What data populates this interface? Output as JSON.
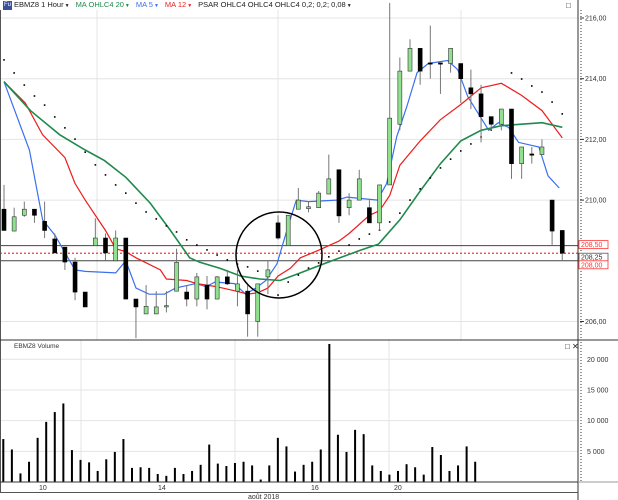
{
  "header": {
    "symbol": "EBMZ8 1 Hour",
    "ma20": "MA OHLC4 20",
    "ma5": "MA 5",
    "ma12": "MA 12",
    "psar": "PSAR OHLC4 OHLC4 OHLC4 0,2; 0,2; 0,08",
    "logo": "Fu"
  },
  "volume_panel": {
    "title": "EBMZ8 Volume"
  },
  "colors": {
    "ma5": "#3a6ff0",
    "ma12": "#ee1c1c",
    "ma20": "#1f8a4c",
    "up": "#90e090",
    "down": "#000000",
    "level": "#ff3333"
  },
  "chart_data": [
    {
      "type": "candlestick",
      "title": "EBMZ8 1 Hour",
      "y_ticks": [
        "216,00",
        "214,00",
        "212,00",
        "210,00",
        "206,00"
      ],
      "y_tick_values": [
        216,
        214,
        212,
        210,
        206
      ],
      "ylim": [
        205.4,
        216.6
      ],
      "price_levels": [
        {
          "label": "208,50",
          "value": 208.5,
          "style": "solid"
        },
        {
          "label": "208,25",
          "value": 208.25,
          "style": "dotted"
        },
        {
          "label": "208,00",
          "value": 208.0,
          "style": "solid"
        }
      ],
      "annotation": "circle around crossover",
      "annotation_center": [
        27,
        208.1
      ],
      "ohlc": [
        [
          209.7,
          210.5,
          209.0,
          209.0
        ],
        [
          208.98,
          209.75,
          208.98,
          209.45
        ],
        [
          209.5,
          209.95,
          209.45,
          209.7
        ],
        [
          209.7,
          209.7,
          209.25,
          209.5
        ],
        [
          209.3,
          209.95,
          208.75,
          209.0
        ],
        [
          208.72,
          208.9,
          208.26,
          208.26
        ],
        [
          208.45,
          208.45,
          207.7,
          207.96
        ],
        [
          207.96,
          208.1,
          206.7,
          206.97
        ],
        [
          206.97,
          206.97,
          206.48,
          206.48
        ],
        [
          208.5,
          209.4,
          208.5,
          208.75
        ],
        [
          208.75,
          208.9,
          208.0,
          208.26
        ],
        [
          208.0,
          209.0,
          208.0,
          208.75
        ],
        [
          208.75,
          208.75,
          206.74,
          206.74
        ],
        [
          206.74,
          206.74,
          205.45,
          206.48
        ],
        [
          206.25,
          207.2,
          206.25,
          206.5
        ],
        [
          206.25,
          207.0,
          206.25,
          206.48
        ],
        [
          206.48,
          207.0,
          206.3,
          206.52
        ],
        [
          207.0,
          208.4,
          207.0,
          207.95
        ],
        [
          206.97,
          207.2,
          206.5,
          206.74
        ],
        [
          206.74,
          207.6,
          206.5,
          207.47
        ],
        [
          207.2,
          207.5,
          206.4,
          206.74
        ],
        [
          206.74,
          207.5,
          206.74,
          207.47
        ],
        [
          207.47,
          207.7,
          207.2,
          207.24
        ],
        [
          207.0,
          207.7,
          206.5,
          207.24
        ],
        [
          207.0,
          207.2,
          205.5,
          206.25
        ],
        [
          206.0,
          207.24,
          205.5,
          207.24
        ],
        [
          207.47,
          208.0,
          206.9,
          207.7
        ],
        [
          209.25,
          209.5,
          208.7,
          208.75
        ],
        [
          208.5,
          209.5,
          208.5,
          209.5
        ],
        [
          209.7,
          210.4,
          209.7,
          210.0
        ],
        [
          209.72,
          209.95,
          209.6,
          209.78
        ],
        [
          209.75,
          210.3,
          209.75,
          210.23
        ],
        [
          210.2,
          211.5,
          210.2,
          210.7
        ],
        [
          211.0,
          211.0,
          209.25,
          209.48
        ],
        [
          209.75,
          210.23,
          209.5,
          210.0
        ],
        [
          210.0,
          211.0,
          210.0,
          210.7
        ],
        [
          209.75,
          210.0,
          209.25,
          209.25
        ],
        [
          209.25,
          210.5,
          209.0,
          210.5
        ],
        [
          210.5,
          216.5,
          210.5,
          212.7
        ],
        [
          212.5,
          214.7,
          212.3,
          214.25
        ],
        [
          214.25,
          215.3,
          214.25,
          215.0
        ],
        [
          215.0,
          215.0,
          213.8,
          214.25
        ],
        [
          214.52,
          215.75,
          214.0,
          214.48
        ],
        [
          214.52,
          214.5,
          213.5,
          214.48
        ],
        [
          214.5,
          215.0,
          214.2,
          215.0
        ],
        [
          214.5,
          214.5,
          213.2,
          214.0
        ],
        [
          213.7,
          214.3,
          213.0,
          213.5
        ],
        [
          213.5,
          213.8,
          211.9,
          212.75
        ],
        [
          212.75,
          212.75,
          212.3,
          212.5
        ],
        [
          212.5,
          213.0,
          212.3,
          213.0
        ],
        [
          213.0,
          213.0,
          210.7,
          211.2
        ],
        [
          211.2,
          211.75,
          210.7,
          211.75
        ],
        [
          211.52,
          211.75,
          211.2,
          211.48
        ],
        [
          211.5,
          212.0,
          211.5,
          211.75
        ],
        [
          210.0,
          210.0,
          208.5,
          208.98
        ],
        [
          209.0,
          209.0,
          208.0,
          208.25
        ]
      ],
      "series": [
        {
          "name": "MA 5",
          "points": [
            [
              0,
              213.9
            ],
            [
              2.5,
              211.65
            ],
            [
              3.8,
              209.35
            ],
            [
              5,
              208.85
            ],
            [
              7,
              207.7
            ],
            [
              8,
              207.65
            ],
            [
              11,
              207.6
            ],
            [
              12,
              208.0
            ],
            [
              13,
              207.1
            ],
            [
              14.3,
              206.9
            ],
            [
              15.8,
              206.9
            ],
            [
              16.9,
              207.1
            ],
            [
              18.9,
              207.25
            ],
            [
              19.9,
              207.15
            ],
            [
              20.8,
              207.3
            ],
            [
              22.7,
              207.25
            ],
            [
              23.8,
              206.9
            ],
            [
              24.8,
              207.1
            ],
            [
              25.8,
              207.35
            ],
            [
              26.9,
              207.9
            ],
            [
              28,
              209.15
            ],
            [
              28.8,
              210.0
            ],
            [
              30,
              209.95
            ],
            [
              32.8,
              210.0
            ],
            [
              33.8,
              210.1
            ],
            [
              36.8,
              210.0
            ],
            [
              37.7,
              210.55
            ],
            [
              38.7,
              212.1
            ],
            [
              39.7,
              213.1
            ],
            [
              40.7,
              214.2
            ],
            [
              41.8,
              214.5
            ],
            [
              43.7,
              214.6
            ],
            [
              44.7,
              214.3
            ],
            [
              45.7,
              213.4
            ],
            [
              47.75,
              212.3
            ],
            [
              48.7,
              212.55
            ],
            [
              49.7,
              212.4
            ],
            [
              50.7,
              211.9
            ],
            [
              52.7,
              211.75
            ],
            [
              53.6,
              210.8
            ],
            [
              54.7,
              210.4
            ]
          ]
        },
        {
          "name": "MA 12",
          "points": [
            [
              0,
              213.9
            ],
            [
              2.1,
              213.2
            ],
            [
              3.8,
              212.15
            ],
            [
              6,
              211.4
            ],
            [
              7,
              210.55
            ],
            [
              8,
              210.0
            ],
            [
              10,
              209.0
            ],
            [
              11,
              208.4
            ],
            [
              12,
              208.3
            ],
            [
              13,
              208.1
            ],
            [
              15.4,
              207.7
            ],
            [
              16,
              207.4
            ],
            [
              18,
              207.35
            ],
            [
              19,
              207.25
            ],
            [
              20.9,
              207.15
            ],
            [
              22.9,
              207.0
            ],
            [
              24,
              206.9
            ],
            [
              25,
              206.95
            ],
            [
              26,
              207.1
            ],
            [
              27,
              207.5
            ],
            [
              28.2,
              207.75
            ],
            [
              29.2,
              208.1
            ],
            [
              31,
              208.35
            ],
            [
              33,
              208.65
            ],
            [
              34,
              208.9
            ],
            [
              36,
              209.5
            ],
            [
              37,
              209.65
            ],
            [
              38,
              210.15
            ],
            [
              39,
              211.15
            ],
            [
              41,
              211.95
            ],
            [
              43,
              212.65
            ],
            [
              45,
              213.15
            ],
            [
              47,
              213.7
            ],
            [
              49,
              213.85
            ],
            [
              51,
              213.45
            ],
            [
              53,
              212.95
            ],
            [
              55,
              212.05
            ]
          ]
        },
        {
          "name": "MA OHLC4 20",
          "points": [
            [
              0,
              213.9
            ],
            [
              2.6,
              212.95
            ],
            [
              5.5,
              212.15
            ],
            [
              8,
              211.65
            ],
            [
              9.9,
              211.3
            ],
            [
              12,
              210.75
            ],
            [
              14.4,
              209.9
            ],
            [
              16.4,
              209.0
            ],
            [
              18.3,
              208.1
            ],
            [
              19.3,
              207.95
            ],
            [
              21.3,
              207.75
            ],
            [
              23.3,
              207.5
            ],
            [
              25.2,
              207.4
            ],
            [
              27.2,
              207.35
            ],
            [
              29.2,
              207.6
            ],
            [
              31.1,
              207.85
            ],
            [
              33.1,
              208.1
            ],
            [
              35.1,
              208.35
            ],
            [
              36.9,
              208.55
            ],
            [
              39,
              209.35
            ],
            [
              41,
              210.3
            ],
            [
              43,
              211.2
            ],
            [
              45,
              211.95
            ],
            [
              47,
              212.3
            ],
            [
              49,
              212.45
            ],
            [
              51,
              212.5
            ],
            [
              53,
              212.55
            ],
            [
              55,
              212.4
            ]
          ]
        }
      ],
      "psar": [
        214.62,
        214.19,
        213.79,
        213.43,
        213.13,
        212.74,
        212.38,
        212.01,
        211.58,
        211.16,
        210.83,
        210.5,
        210.23,
        209.9,
        209.61,
        209.38,
        209.15,
        208.95,
        208.69,
        208.52,
        208.36,
        208.19,
        208.03,
        207.89,
        207.8,
        207.66,
        null,
        206.87,
        207.3,
        207.53,
        207.76,
        207.93,
        208.13,
        208.32,
        208.52,
        208.72,
        208.88,
        209.01,
        209.28,
        209.57,
        210.0,
        210.37,
        210.73,
        211.06,
        211.35,
        211.62,
        211.85,
        212.08,
        212.31,
        null,
        214.19,
        213.99,
        213.76,
        213.56,
        213.23,
        212.84
      ]
    },
    {
      "type": "bar",
      "title": "EBMZ8 Volume",
      "y_ticks": [
        "20 000",
        "15 000",
        "10 000",
        "5 000"
      ],
      "y_tick_values": [
        20000,
        15000,
        10000,
        5000
      ],
      "ylim": [
        0,
        23000
      ],
      "x_ticks": [
        "10",
        "14",
        "16",
        "20"
      ],
      "xlabel": "août 2018",
      "values": [
        7000,
        5300,
        1400,
        3300,
        7200,
        9800,
        11400,
        12800,
        5200,
        3600,
        3200,
        1800,
        3700,
        4900,
        7000,
        2300,
        2400,
        2300,
        1300,
        1000,
        2300,
        1300,
        1800,
        2800,
        6100,
        3000,
        2600,
        3100,
        3300,
        2700,
        400,
        2700,
        7200,
        5800,
        1700,
        2800,
        3300,
        5300,
        22500,
        7700,
        4900,
        8500,
        7800,
        2700,
        1800,
        1200,
        1800,
        2900,
        2400,
        1200,
        5700,
        4400,
        1800,
        2700,
        5800,
        3300
      ]
    }
  ]
}
